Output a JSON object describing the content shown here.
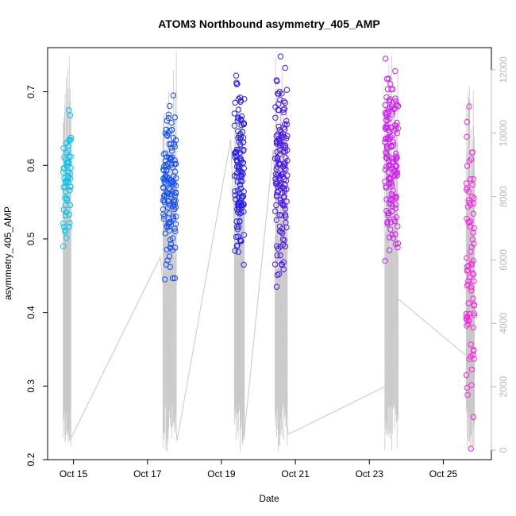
{
  "chart_data": {
    "type": "scatter",
    "title": "ATOM3 Northbound asymmetry_405_AMP",
    "xlabel": "Date",
    "ylabel": "asymmetry_405_AMP",
    "x_tick_labels": [
      "Oct 15",
      "Oct 17",
      "Oct 19",
      "Oct 21",
      "Oct 23",
      "Oct 25"
    ],
    "x_tick_days": [
      15,
      17,
      19,
      21,
      23,
      25
    ],
    "xlim_days": [
      14.3,
      26.3
    ],
    "y_ticks": [
      0.2,
      0.3,
      0.4,
      0.5,
      0.6,
      0.7
    ],
    "y_tick_labels": [
      "0.2",
      "0.3",
      "0.4",
      "0.5",
      "0.6",
      "0.7"
    ],
    "ylim": [
      0.2,
      0.76
    ],
    "y2_ticks": [
      0,
      2000,
      4000,
      6000,
      8000,
      10000,
      12000
    ],
    "y2_tick_labels": [
      "0",
      "2000",
      "4000",
      "6000",
      "8000",
      "10000",
      "12000"
    ],
    "y2lim": [
      -300,
      12700
    ],
    "grid": false,
    "color_gradient": [
      "#00c8f0",
      "#1060ff",
      "#2020e8",
      "#6010f0",
      "#d020f0",
      "#ff20e0"
    ],
    "line_color": "#c8c8c8",
    "clusters": [
      {
        "day_start": 14.72,
        "day_end": 14.93,
        "y_min": 0.49,
        "y_max": 0.675,
        "count": 55
      },
      {
        "day_start": 17.42,
        "day_end": 17.78,
        "y_min": 0.445,
        "y_max": 0.695,
        "count": 130
      },
      {
        "day_start": 19.35,
        "day_end": 19.62,
        "y_min": 0.465,
        "y_max": 0.722,
        "count": 120
      },
      {
        "day_start": 20.45,
        "day_end": 20.78,
        "y_min": 0.435,
        "y_max": 0.748,
        "count": 140
      },
      {
        "day_start": 23.42,
        "day_end": 23.78,
        "y_min": 0.47,
        "y_max": 0.745,
        "count": 150
      },
      {
        "day_start": 25.62,
        "day_end": 25.84,
        "y_min": 0.215,
        "y_max": 0.68,
        "count": 80
      }
    ],
    "secondary_line_points": [
      [
        14.9,
        300
      ],
      [
        17.35,
        6100
      ],
      [
        17.8,
        300
      ],
      [
        19.25,
        9800
      ],
      [
        19.6,
        300
      ],
      [
        20.4,
        9500
      ],
      [
        20.8,
        500
      ],
      [
        23.42,
        2000
      ],
      [
        23.75,
        4800
      ],
      [
        25.6,
        3000
      ]
    ]
  }
}
